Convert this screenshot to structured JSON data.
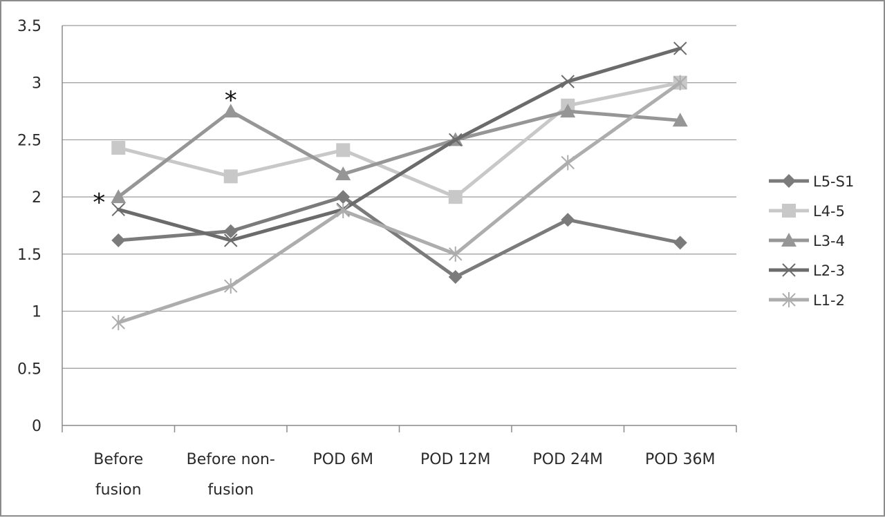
{
  "chart_data": {
    "type": "line",
    "categories": [
      [
        "Before",
        "fusion"
      ],
      [
        "Before non-",
        "fusion"
      ],
      [
        "POD 6M"
      ],
      [
        "POD 12M"
      ],
      [
        "POD 24M"
      ],
      [
        "POD 36M"
      ]
    ],
    "ylim": [
      0,
      3.5
    ],
    "yticks": [
      0,
      0.5,
      1,
      1.5,
      2,
      2.5,
      3,
      3.5
    ],
    "ytick_labels": [
      "0",
      "0.5",
      "1",
      "1.5",
      "2",
      "2.5",
      "3",
      "3.5"
    ],
    "grid": "horizontal",
    "legend_position": "right",
    "series": [
      {
        "name": "L5-S1",
        "values": [
          1.62,
          1.7,
          2.0,
          1.3,
          1.8,
          1.6
        ],
        "color": "#7b7b7b",
        "marker": "diamond"
      },
      {
        "name": "L4-5",
        "values": [
          2.43,
          2.18,
          2.41,
          2.0,
          2.8,
          3.0
        ],
        "color": "#c8c8c8",
        "marker": "square"
      },
      {
        "name": "L3-4",
        "values": [
          2.0,
          2.75,
          2.2,
          2.5,
          2.75,
          2.67
        ],
        "color": "#969696",
        "marker": "triangle"
      },
      {
        "name": "L2-3",
        "values": [
          1.89,
          1.62,
          1.89,
          2.5,
          3.01,
          3.3
        ],
        "color": "#6b6b6b",
        "marker": "x"
      },
      {
        "name": "L1-2",
        "values": [
          0.9,
          1.22,
          1.88,
          1.5,
          2.3,
          3.0
        ],
        "color": "#adadad",
        "marker": "star"
      }
    ],
    "annotations": [
      {
        "text": "*",
        "category_index": 0,
        "y": 2.0,
        "placement": "left"
      },
      {
        "text": "*",
        "category_index": 1,
        "y": 2.75,
        "placement": "above"
      }
    ]
  }
}
